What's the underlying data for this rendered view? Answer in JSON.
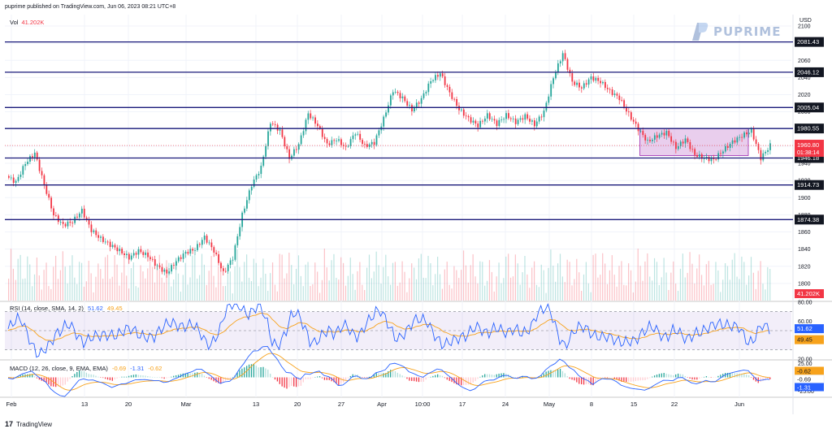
{
  "header": {
    "published_text": "puprime published on TradingView.com, Jun 06, 2023 08:21 UTC+8",
    "currency": "USD"
  },
  "logo": {
    "text": "PUPRIME"
  },
  "footer": {
    "brand": "TradingView"
  },
  "colors": {
    "up": "#26a69a",
    "down": "#f23645",
    "level_line": "#1a1a7a",
    "rsi_line": "#2962ff",
    "rsi_ma": "#f7a21b",
    "rsi_band": "#7e57c2",
    "box_fill": "#ce93d8"
  },
  "chart_data": [
    {
      "type": "candlestick",
      "name": "price",
      "ylim": [
        1780,
        2100
      ],
      "y_ticks": [
        1800,
        1820,
        1840,
        1860,
        1880,
        1900,
        1920,
        1940,
        1960,
        1980,
        2000,
        2020,
        2040,
        2060,
        2080,
        2100
      ],
      "x_tick_labels": [
        "Feb",
        "13",
        "20",
        "Mar",
        "13",
        "20",
        "27",
        "Apr",
        "10:00",
        "17",
        "24",
        "May",
        "8",
        "15",
        "22",
        "Jun"
      ],
      "horizontal_levels": [
        2081.43,
        2046.12,
        2005.04,
        1980.55,
        1946.18,
        1914.73,
        1874.38
      ],
      "current_price": {
        "value": 1960.8,
        "countdown": "01:38:14"
      },
      "highlight_box": {
        "y_top": 1980.55,
        "y_bottom": 1949
      },
      "approx_path": [
        [
          0,
          1925
        ],
        [
          2,
          1918
        ],
        [
          4,
          1940
        ],
        [
          6,
          1952
        ],
        [
          8,
          1915
        ],
        [
          10,
          1880
        ],
        [
          12,
          1868
        ],
        [
          14,
          1872
        ],
        [
          16,
          1885
        ],
        [
          18,
          1862
        ],
        [
          20,
          1852
        ],
        [
          22,
          1845
        ],
        [
          24,
          1838
        ],
        [
          26,
          1830
        ],
        [
          28,
          1838
        ],
        [
          30,
          1832
        ],
        [
          32,
          1820
        ],
        [
          34,
          1812
        ],
        [
          36,
          1826
        ],
        [
          38,
          1836
        ],
        [
          40,
          1840
        ],
        [
          42,
          1854
        ],
        [
          44,
          1838
        ],
        [
          46,
          1812
        ],
        [
          48,
          1830
        ],
        [
          50,
          1880
        ],
        [
          52,
          1915
        ],
        [
          54,
          1935
        ],
        [
          56,
          1988
        ],
        [
          58,
          1978
        ],
        [
          60,
          1946
        ],
        [
          62,
          1962
        ],
        [
          64,
          1998
        ],
        [
          66,
          1984
        ],
        [
          68,
          1962
        ],
        [
          70,
          1968
        ],
        [
          72,
          1958
        ],
        [
          74,
          1976
        ],
        [
          76,
          1960
        ],
        [
          78,
          1964
        ],
        [
          80,
          1992
        ],
        [
          82,
          2025
        ],
        [
          84,
          2016
        ],
        [
          86,
          2002
        ],
        [
          88,
          2015
        ],
        [
          90,
          2036
        ],
        [
          92,
          2045
        ],
        [
          94,
          2022
        ],
        [
          96,
          2003
        ],
        [
          98,
          1992
        ],
        [
          100,
          1984
        ],
        [
          102,
          1996
        ],
        [
          104,
          1986
        ],
        [
          106,
          1996
        ],
        [
          108,
          1988
        ],
        [
          110,
          1995
        ],
        [
          112,
          1985
        ],
        [
          114,
          2000
        ],
        [
          116,
          2040
        ],
        [
          118,
          2068
        ],
        [
          120,
          2035
        ],
        [
          122,
          2028
        ],
        [
          124,
          2040
        ],
        [
          126,
          2035
        ],
        [
          128,
          2024
        ],
        [
          130,
          2016
        ],
        [
          132,
          1997
        ],
        [
          134,
          1980
        ],
        [
          136,
          1965
        ],
        [
          138,
          1972
        ],
        [
          140,
          1976
        ],
        [
          142,
          1958
        ],
        [
          144,
          1968
        ],
        [
          146,
          1950
        ],
        [
          148,
          1946
        ],
        [
          150,
          1944
        ],
        [
          152,
          1955
        ],
        [
          154,
          1965
        ],
        [
          156,
          1972
        ],
        [
          158,
          1978
        ],
        [
          160,
          1946
        ],
        [
          162,
          1960.8
        ]
      ]
    },
    {
      "type": "bar",
      "name": "Vol",
      "legend_label": "Vol",
      "last_value_text": "41.202K"
    },
    {
      "type": "line",
      "name": "RSI",
      "legend_label": "RSI (14, close, SMA, 14, 2)",
      "values_text": [
        "51.62",
        "49.45"
      ],
      "ylim": [
        20,
        80
      ],
      "y_ticks": [
        20,
        40,
        60,
        80
      ],
      "band": [
        30,
        70
      ],
      "last_values": [
        51.62,
        49.45
      ]
    },
    {
      "type": "line",
      "name": "MACD",
      "legend_label": "MACD (12, 26, close, 9, EMA, EMA)",
      "values_text": [
        "-0.69",
        "-1.31",
        "-0.62"
      ],
      "ylim": [
        -25,
        25
      ],
      "y_ticks": [
        25,
        0,
        -25
      ],
      "last_values": {
        "hist": -0.62,
        "signal": -0.69,
        "macd": -1.31
      },
      "tick_labels": [
        "25.00",
        "0.00",
        "-25.00"
      ]
    }
  ]
}
